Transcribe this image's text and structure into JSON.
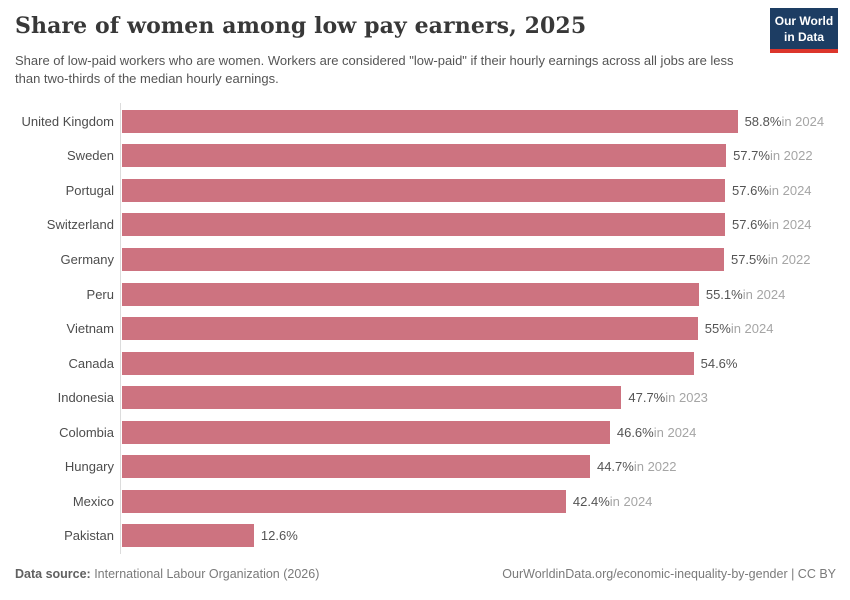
{
  "header": {
    "title": "Share of women among low pay earners, 2025",
    "subtitle": "Share of low-paid workers who are women. Workers are considered \"low-paid\" if their hourly earnings across all jobs are less than two-thirds of the median hourly earnings.",
    "logo": {
      "line1": "Our World",
      "line2": "in Data"
    }
  },
  "chart_data": {
    "type": "bar",
    "orientation": "horizontal",
    "title": "Share of women among low pay earners, 2025",
    "categories": [
      "United Kingdom",
      "Sweden",
      "Portugal",
      "Switzerland",
      "Germany",
      "Peru",
      "Vietnam",
      "Canada",
      "Indonesia",
      "Colombia",
      "Hungary",
      "Mexico",
      "Pakistan"
    ],
    "values": [
      58.8,
      57.7,
      57.6,
      57.6,
      57.5,
      55.1,
      55,
      54.6,
      47.7,
      46.6,
      44.7,
      42.4,
      12.6
    ],
    "value_labels": [
      "58.8%",
      "57.7%",
      "57.6%",
      "57.6%",
      "57.5%",
      "55.1%",
      "55%",
      "54.6%",
      "47.7%",
      "46.6%",
      "44.7%",
      "42.4%",
      "12.6%"
    ],
    "year_labels": [
      "in 2024",
      "in 2022",
      "in 2024",
      "in 2024",
      "in 2022",
      "in 2024",
      "in 2024",
      "",
      "in 2023",
      "in 2024",
      "in 2022",
      "in 2024",
      ""
    ],
    "xlabel": "",
    "ylabel": "",
    "xlim": [
      0,
      68.2
    ],
    "grid": false,
    "legend": false,
    "bar_color": "#cd7380",
    "value_color": "#545454",
    "year_color": "#a5a5a5"
  },
  "footer": {
    "source_label": "Data source:",
    "source_value": " International Labour Organization (2026)",
    "url_text": "OurWorldinData.org/economic-inequality-by-gender | CC BY"
  }
}
